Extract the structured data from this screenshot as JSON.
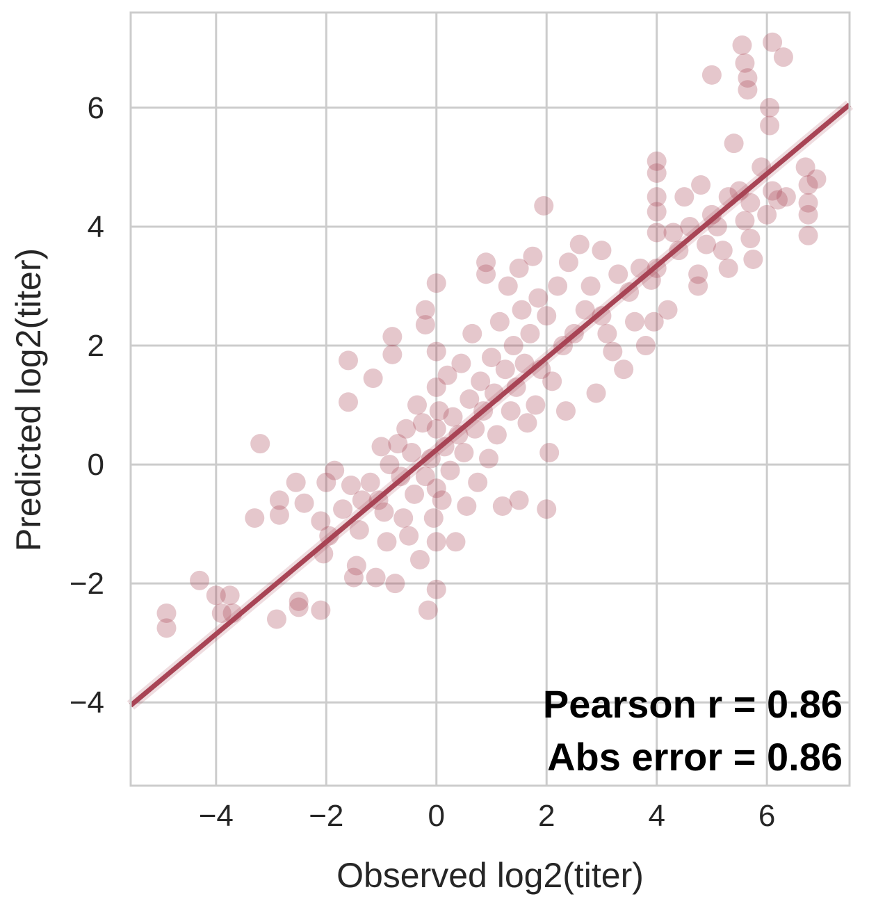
{
  "chart_data": {
    "type": "scatter",
    "title": "",
    "xlabel": "Observed log2(titer)",
    "ylabel": "Predicted log2(titer)",
    "xlim": [
      -5.55,
      7.5
    ],
    "ylim": [
      -5.4,
      7.6
    ],
    "xticks": [
      -4,
      -2,
      0,
      2,
      4,
      6
    ],
    "yticks": [
      -4,
      -2,
      0,
      2,
      4,
      6
    ],
    "xtick_labels": [
      "−4",
      "−2",
      "0",
      "2",
      "4",
      "6"
    ],
    "ytick_labels": [
      "−4",
      "−2",
      "0",
      "2",
      "4",
      "6"
    ],
    "grid": true,
    "point_color": "#a84455",
    "line_color": "#a84455",
    "point_opacity": 0.3,
    "regression_line": {
      "x": [
        -5.55,
        7.5
      ],
      "y": [
        -4.05,
        6.05
      ]
    },
    "points": [
      [
        -4.9,
        -2.5
      ],
      [
        -4.9,
        -2.75
      ],
      [
        -4.3,
        -1.95
      ],
      [
        -4.0,
        -2.2
      ],
      [
        -3.9,
        -2.5
      ],
      [
        -3.75,
        -2.2
      ],
      [
        -3.7,
        -2.5
      ],
      [
        -3.3,
        -0.9
      ],
      [
        -3.2,
        0.35
      ],
      [
        -2.9,
        -2.6
      ],
      [
        -2.85,
        -0.6
      ],
      [
        -2.85,
        -0.85
      ],
      [
        -2.55,
        -0.3
      ],
      [
        -2.5,
        -2.3
      ],
      [
        -2.5,
        -2.4
      ],
      [
        -2.4,
        -0.65
      ],
      [
        -2.1,
        -2.45
      ],
      [
        -2.1,
        -0.95
      ],
      [
        -2.05,
        -1.5
      ],
      [
        -2.0,
        -0.3
      ],
      [
        -1.95,
        -1.2
      ],
      [
        -1.85,
        -0.1
      ],
      [
        -1.7,
        -0.75
      ],
      [
        -1.6,
        1.75
      ],
      [
        -1.6,
        1.05
      ],
      [
        -1.55,
        -0.35
      ],
      [
        -1.5,
        -1.9
      ],
      [
        -1.45,
        -1.7
      ],
      [
        -1.4,
        -1.1
      ],
      [
        -1.35,
        -0.6
      ],
      [
        -1.2,
        -0.3
      ],
      [
        -1.15,
        1.45
      ],
      [
        -1.1,
        -1.9
      ],
      [
        -1.05,
        -0.6
      ],
      [
        -1.0,
        0.3
      ],
      [
        -0.95,
        -0.8
      ],
      [
        -0.9,
        -1.3
      ],
      [
        -0.85,
        0.0
      ],
      [
        -0.8,
        2.15
      ],
      [
        -0.8,
        1.85
      ],
      [
        -0.75,
        -2.0
      ],
      [
        -0.7,
        0.35
      ],
      [
        -0.65,
        -0.2
      ],
      [
        -0.6,
        -0.9
      ],
      [
        -0.55,
        0.6
      ],
      [
        -0.5,
        -1.2
      ],
      [
        -0.45,
        0.2
      ],
      [
        -0.4,
        -0.5
      ],
      [
        -0.35,
        1.0
      ],
      [
        -0.3,
        -1.6
      ],
      [
        -0.25,
        0.7
      ],
      [
        -0.2,
        -0.2
      ],
      [
        -0.2,
        2.6
      ],
      [
        -0.2,
        2.35
      ],
      [
        -0.15,
        -2.45
      ],
      [
        -0.1,
        0.1
      ],
      [
        -0.05,
        -0.9
      ],
      [
        0.0,
        3.05
      ],
      [
        0.0,
        1.9
      ],
      [
        0.0,
        1.3
      ],
      [
        0.0,
        0.6
      ],
      [
        0.0,
        -0.4
      ],
      [
        0.0,
        -1.3
      ],
      [
        0.0,
        -2.1
      ],
      [
        0.05,
        0.9
      ],
      [
        0.1,
        -0.6
      ],
      [
        0.15,
        0.3
      ],
      [
        0.2,
        1.5
      ],
      [
        0.25,
        -0.1
      ],
      [
        0.3,
        0.8
      ],
      [
        0.35,
        -1.3
      ],
      [
        0.4,
        0.5
      ],
      [
        0.45,
        1.7
      ],
      [
        0.5,
        0.2
      ],
      [
        0.55,
        -0.7
      ],
      [
        0.6,
        1.1
      ],
      [
        0.65,
        2.2
      ],
      [
        0.7,
        0.6
      ],
      [
        0.75,
        -0.3
      ],
      [
        0.8,
        1.4
      ],
      [
        0.85,
        0.9
      ],
      [
        0.9,
        3.4
      ],
      [
        0.9,
        3.2
      ],
      [
        0.95,
        0.1
      ],
      [
        1.0,
        1.8
      ],
      [
        1.05,
        1.2
      ],
      [
        1.1,
        0.5
      ],
      [
        1.15,
        2.4
      ],
      [
        1.2,
        -0.7
      ],
      [
        1.25,
        1.6
      ],
      [
        1.3,
        3.0
      ],
      [
        1.35,
        0.9
      ],
      [
        1.4,
        2.0
      ],
      [
        1.45,
        1.3
      ],
      [
        1.5,
        3.3
      ],
      [
        1.5,
        -0.6
      ],
      [
        1.55,
        2.6
      ],
      [
        1.6,
        1.7
      ],
      [
        1.65,
        0.7
      ],
      [
        1.7,
        2.2
      ],
      [
        1.75,
        3.5
      ],
      [
        1.8,
        1.0
      ],
      [
        1.85,
        2.8
      ],
      [
        1.9,
        1.6
      ],
      [
        1.95,
        4.35
      ],
      [
        2.0,
        -0.75
      ],
      [
        2.0,
        2.5
      ],
      [
        2.05,
        0.2
      ],
      [
        2.1,
        1.4
      ],
      [
        2.2,
        3.0
      ],
      [
        2.3,
        2.0
      ],
      [
        2.35,
        0.9
      ],
      [
        2.4,
        3.4
      ],
      [
        2.5,
        2.2
      ],
      [
        2.6,
        3.7
      ],
      [
        2.7,
        2.6
      ],
      [
        2.8,
        3.0
      ],
      [
        2.9,
        1.2
      ],
      [
        3.0,
        2.5
      ],
      [
        3.0,
        3.6
      ],
      [
        3.1,
        2.2
      ],
      [
        3.2,
        1.9
      ],
      [
        3.3,
        3.2
      ],
      [
        3.4,
        1.6
      ],
      [
        3.5,
        2.9
      ],
      [
        3.6,
        2.4
      ],
      [
        3.7,
        3.3
      ],
      [
        3.8,
        2.0
      ],
      [
        3.9,
        3.1
      ],
      [
        3.95,
        2.4
      ],
      [
        4.0,
        5.1
      ],
      [
        4.0,
        4.9
      ],
      [
        4.0,
        4.5
      ],
      [
        4.0,
        4.25
      ],
      [
        4.0,
        3.9
      ],
      [
        4.0,
        3.3
      ],
      [
        4.2,
        2.6
      ],
      [
        4.3,
        3.9
      ],
      [
        4.4,
        3.6
      ],
      [
        4.5,
        4.5
      ],
      [
        4.6,
        4.0
      ],
      [
        4.75,
        3.2
      ],
      [
        4.75,
        3.0
      ],
      [
        4.8,
        4.7
      ],
      [
        4.9,
        3.7
      ],
      [
        5.0,
        6.55
      ],
      [
        5.0,
        4.2
      ],
      [
        5.1,
        4.0
      ],
      [
        5.2,
        3.6
      ],
      [
        5.3,
        4.5
      ],
      [
        5.3,
        3.3
      ],
      [
        5.4,
        5.4
      ],
      [
        5.5,
        4.6
      ],
      [
        5.6,
        4.1
      ],
      [
        5.7,
        3.8
      ],
      [
        5.7,
        4.4
      ],
      [
        5.75,
        3.45
      ],
      [
        5.55,
        7.05
      ],
      [
        5.6,
        6.75
      ],
      [
        5.65,
        6.5
      ],
      [
        5.65,
        6.3
      ],
      [
        5.9,
        5.0
      ],
      [
        6.0,
        4.2
      ],
      [
        6.05,
        6.0
      ],
      [
        6.05,
        5.7
      ],
      [
        6.1,
        4.6
      ],
      [
        6.1,
        7.1
      ],
      [
        6.2,
        4.45
      ],
      [
        6.3,
        6.85
      ],
      [
        6.35,
        4.5
      ],
      [
        6.7,
        5.0
      ],
      [
        6.75,
        4.7
      ],
      [
        6.75,
        4.4
      ],
      [
        6.75,
        4.2
      ],
      [
        6.75,
        3.85
      ],
      [
        6.9,
        4.8
      ]
    ],
    "annotations": [
      "Pearson r = 0.86",
      "Abs error = 0.86"
    ]
  }
}
